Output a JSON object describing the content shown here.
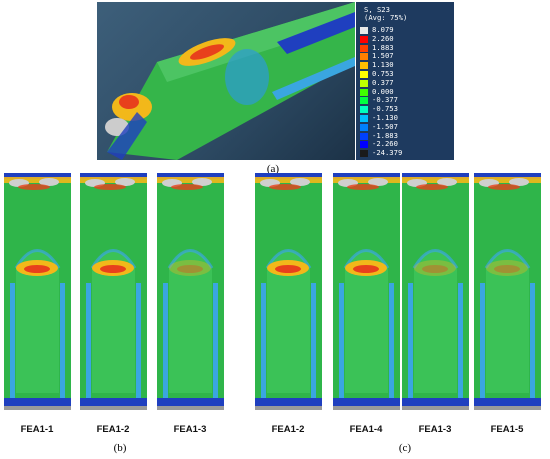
{
  "top_figure": {
    "caption": "(a)",
    "legend": {
      "title": "S, S23",
      "subtitle": "(Avg: 75%)",
      "entries": [
        {
          "value": "8.079",
          "color": "#e9e9e9"
        },
        {
          "value": "2.260",
          "color": "#ff0000"
        },
        {
          "value": "1.883",
          "color": "#ff4000"
        },
        {
          "value": "1.507",
          "color": "#ff8000"
        },
        {
          "value": "1.130",
          "color": "#ffbf00"
        },
        {
          "value": "0.753",
          "color": "#ffff00"
        },
        {
          "value": "0.377",
          "color": "#bfff00"
        },
        {
          "value": "0.000",
          "color": "#40ff00"
        },
        {
          "value": "-0.377",
          "color": "#00ff40"
        },
        {
          "value": "-0.753",
          "color": "#00ffbf"
        },
        {
          "value": "-1.130",
          "color": "#00bfff"
        },
        {
          "value": "-1.507",
          "color": "#0080ff"
        },
        {
          "value": "-1.883",
          "color": "#0040ff"
        },
        {
          "value": "-2.260",
          "color": "#0000ff"
        },
        {
          "value": "-24.379",
          "color": "#1a1a1a"
        }
      ]
    }
  },
  "panel_b": {
    "caption": "(b)",
    "labels": [
      "FEA1-1",
      "FEA1-2",
      "FEA1-3"
    ]
  },
  "panel_c": {
    "caption": "(c)",
    "labels": [
      "FEA1-2",
      "FEA1-4",
      "FEA1-3",
      "FEA1-5"
    ]
  },
  "colors": {
    "mesh_green": "#2fb54a",
    "hot": "#e8401c",
    "warm": "#f2b81a",
    "cold": "#1f3fbf",
    "cool": "#3aa6e0"
  }
}
